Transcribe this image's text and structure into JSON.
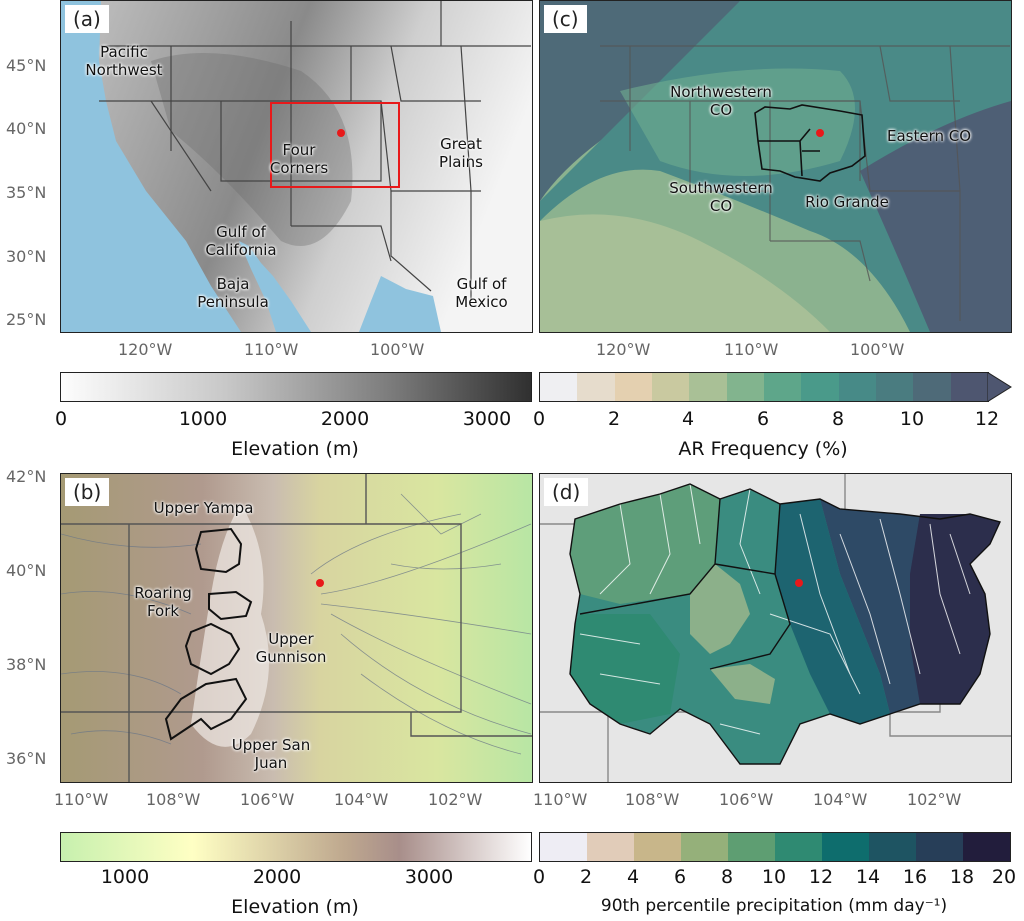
{
  "panels": {
    "a": {
      "label": "(a)",
      "regions": {
        "pnw": "Pacific\nNorthwest",
        "fc": "Four\nCorners",
        "gp": "Great\nPlains",
        "goc": "Gulf of\nCalifornia",
        "baja": "Baja\nPeninsula",
        "gom": "Gulf of\nMexico"
      },
      "colorbar": {
        "title": "Elevation (m)",
        "ticks": [
          "0",
          "1000",
          "2000",
          "3000"
        ]
      }
    },
    "b": {
      "label": "(b)",
      "basins": {
        "yampa": "Upper Yampa",
        "rf": "Roaring\nFork",
        "gunn": "Upper\nGunnison",
        "sj": "Upper San\nJuan"
      },
      "colorbar": {
        "title": "Elevation (m)",
        "ticks": [
          "1000",
          "2000",
          "3000"
        ]
      }
    },
    "c": {
      "label": "(c)",
      "regions": {
        "nw": "Northwestern\nCO",
        "e": "Eastern CO",
        "sw": "Southwestern\nCO",
        "rg": "Rio Grande"
      },
      "colorbar": {
        "title": "AR Frequency (%)",
        "ticks": [
          "0",
          "2",
          "4",
          "6",
          "8",
          "10",
          "12"
        ]
      }
    },
    "d": {
      "label": "(d)",
      "colorbar": {
        "title": "90th percentile precipitation (mm day⁻¹)",
        "ticks": [
          "0",
          "2",
          "4",
          "6",
          "8",
          "10",
          "12",
          "14",
          "16",
          "18",
          "20"
        ]
      }
    }
  },
  "axes": {
    "top_lat": [
      "45°N",
      "40°N",
      "35°N",
      "30°N",
      "25°N"
    ],
    "top_lon": [
      "120°W",
      "110°W",
      "100°W"
    ],
    "bottom_lat": [
      "42°N",
      "40°N",
      "38°N",
      "36°N"
    ],
    "bottom_lon": [
      "110°W",
      "108°W",
      "106°W",
      "104°W",
      "102°W"
    ]
  },
  "colors": {
    "ocean": "#8fc3de",
    "marker": "#e8191a",
    "box": "#e8191a",
    "ar_scale": [
      "#efeff2",
      "#e6dccc",
      "#e4d0b0",
      "#c9c9a0",
      "#a9c096",
      "#82b48e",
      "#5ea68a",
      "#4a9a8a",
      "#478a87",
      "#4a7c80",
      "#4e6a78",
      "#4e5670"
    ],
    "precip_scale": [
      "#eeedf4",
      "#e1ccb9",
      "#c8b68a",
      "#95b07a",
      "#5e9e72",
      "#2f8a72",
      "#0e6d6d",
      "#1e5462",
      "#273e58",
      "#221d3c"
    ],
    "elev_grey": [
      "#fdfdfd",
      "#303030"
    ],
    "elev_terrain": [
      "#c7f0ae",
      "#ffffc4",
      "#a88e8a",
      "#ffffff"
    ]
  }
}
